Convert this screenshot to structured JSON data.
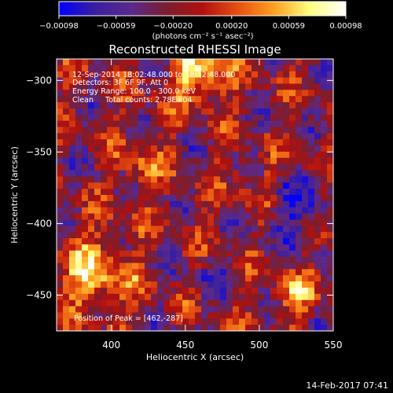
{
  "chart_data": {
    "type": "heatmap",
    "title": "Reconstructed RHESSI Image",
    "xlabel": "Heliocentric X (arcsec)",
    "ylabel": "Heliocentric Y (arcsec)",
    "xlim": [
      363,
      550
    ],
    "ylim": [
      -475,
      -285
    ],
    "x_ticks": [
      400,
      450,
      500,
      550
    ],
    "x_tick_labels": [
      "400",
      "450",
      "500",
      "550"
    ],
    "y_ticks": [
      -300,
      -350,
      -400,
      -450
    ],
    "y_tick_labels": [
      "−300",
      "−350",
      "−400",
      "−450"
    ],
    "colorbar": {
      "min": -0.00098,
      "max": 0.00098,
      "ticks": [
        -0.00098,
        -0.00059,
        -0.0002,
        0.0002,
        0.00059,
        0.00098
      ],
      "tick_labels": [
        "−0.00098",
        "−0.00059",
        "−0.00020",
        "0.00020",
        "0.00059",
        "0.00098"
      ],
      "unit_label": "(photons cm⁻² s⁻¹ asec⁻²)",
      "colormap": [
        "#0000ff",
        "#3a1ea0",
        "#5a2a8c",
        "#7a1e2e",
        "#b01010",
        "#e85010",
        "#ffa020",
        "#ffff80",
        "#ffffff"
      ]
    },
    "annotations": {
      "time_range": "12-Sep-2014 18:02:48.000 to 18:12:48.000",
      "detectors": "Detectors: 3F 6F 9F, Att 0",
      "energy_range": "Energy Range: 100.0 - 300.0 keV",
      "method_counts": "Clean     Total counts: 2.78E+04",
      "peak": "Position of Peak = [462,-287]"
    },
    "grid": false,
    "description_of_field": "noisy reconstructed hard X-ray image dominated by CLEAN sidelobe pattern; brightest source near top edge"
  },
  "footer": {
    "timestamp": "14-Feb-2017 07:41"
  }
}
